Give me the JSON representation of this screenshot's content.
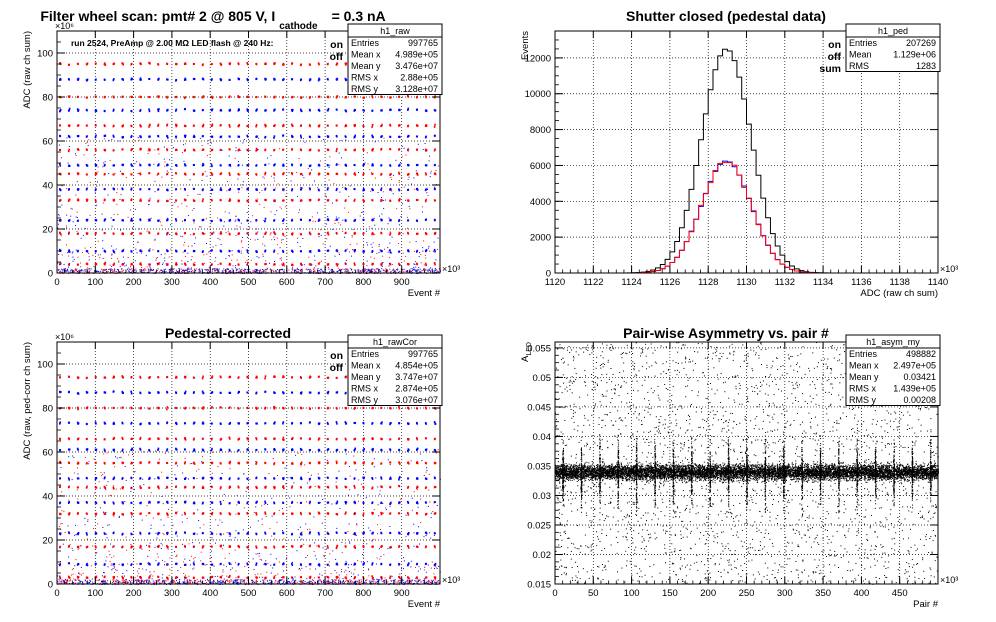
{
  "charts": [
    {
      "type": "scatter",
      "title": "Filter wheel scan: pmt#   2 @   805 V, I",
      "title_sub": "cathode",
      "title_tail": "= 0.3 nA",
      "xlabel": "Event #",
      "ylabel": "ADC (raw ch sum)",
      "x_exponent": "×10³",
      "y_exponent": "×10⁶",
      "xlim": [
        0,
        1000
      ],
      "ylim": [
        0,
        110
      ],
      "xticks": [
        0,
        100,
        200,
        300,
        400,
        500,
        600,
        700,
        800,
        900
      ],
      "yticks": [
        0,
        20,
        40,
        60,
        80,
        100
      ],
      "annotation": "run 2524, PreAmp @ 2.00 MΩ   LED flash @  240 Hz:",
      "legend": [
        {
          "label": "on",
          "color": "#0000ff"
        },
        {
          "label": "off",
          "color": "#ff0000"
        }
      ],
      "levels": [
        95,
        88,
        80,
        74,
        67,
        62,
        56,
        49,
        45,
        38,
        33,
        24,
        18,
        10,
        4
      ],
      "stats": {
        "name": "h1_raw",
        "rows": [
          [
            "Entries",
            "997765"
          ],
          [
            "Mean x",
            "4.989e+05"
          ],
          [
            "Mean y",
            "3.476e+07"
          ],
          [
            "RMS x",
            "2.88e+05"
          ],
          [
            "RMS y",
            "3.128e+07"
          ]
        ]
      }
    },
    {
      "type": "histogram",
      "title": "Shutter closed (pedestal data)",
      "xlabel": "ADC (raw ch sum)",
      "ylabel": "Events",
      "x_exponent": "×10³",
      "xlim": [
        1120,
        1140
      ],
      "ylim": [
        0,
        13500
      ],
      "xticks": [
        1120,
        1122,
        1124,
        1126,
        1128,
        1130,
        1132,
        1134,
        1136,
        1138,
        1140
      ],
      "yticks": [
        0,
        2000,
        4000,
        6000,
        8000,
        10000,
        12000
      ],
      "legend": [
        {
          "label": "on",
          "color": "#0000ff"
        },
        {
          "label": "off",
          "color": "#ff0000"
        },
        {
          "label": "sum",
          "color": "#000000"
        }
      ],
      "bin_width": 0.25,
      "series": [
        {
          "name": "sum",
          "color": "#000000",
          "peak": 12500,
          "mean": 1128.95,
          "sigma": 1.3
        },
        {
          "name": "on",
          "color": "#0000ff",
          "peak": 6250,
          "mean": 1128.95,
          "sigma": 1.3
        },
        {
          "name": "off",
          "color": "#ff0000",
          "peak": 6250,
          "mean": 1128.95,
          "sigma": 1.3
        }
      ],
      "stats": {
        "name": "h1_ped",
        "rows": [
          [
            "Entries",
            "207269"
          ],
          [
            "Mean",
            "1.129e+06"
          ],
          [
            "RMS",
            "1283"
          ]
        ]
      }
    },
    {
      "type": "scatter",
      "title": "Pedestal-corrected",
      "xlabel": "Event #",
      "ylabel": "ADC (raw, ped-corr ch sum)",
      "x_exponent": "×10³",
      "y_exponent": "×10⁶",
      "xlim": [
        0,
        1000
      ],
      "ylim": [
        0,
        110
      ],
      "xticks": [
        0,
        100,
        200,
        300,
        400,
        500,
        600,
        700,
        800,
        900
      ],
      "yticks": [
        0,
        20,
        40,
        60,
        80,
        100
      ],
      "legend": [
        {
          "label": "on",
          "color": "#0000ff"
        },
        {
          "label": "off",
          "color": "#ff0000"
        }
      ],
      "levels": [
        94,
        87,
        80,
        73,
        66,
        61,
        55,
        48,
        44,
        37,
        32,
        23,
        17,
        9,
        3
      ],
      "stats": {
        "name": "h1_rawCor",
        "rows": [
          [
            "Entries",
            "997765"
          ],
          [
            "Mean x",
            "4.854e+05"
          ],
          [
            "Mean y",
            "3.747e+07"
          ],
          [
            "RMS x",
            "2.874e+05"
          ],
          [
            "RMS y",
            "3.076e+07"
          ]
        ]
      }
    },
    {
      "type": "scatter",
      "title": "Pair-wise Asymmetry vs. pair #",
      "xlabel": "Pair #",
      "ylabel": "A",
      "ylabel_sub": "LED",
      "x_exponent": "×10³",
      "xlim": [
        0,
        500
      ],
      "ylim": [
        0.015,
        0.056
      ],
      "xticks": [
        0,
        50,
        100,
        150,
        200,
        250,
        300,
        350,
        400,
        450
      ],
      "yticks": [
        0.015,
        0.02,
        0.025,
        0.03,
        0.035,
        0.04,
        0.045,
        0.05,
        0.055
      ],
      "band_center": 0.034,
      "spike_period": 24,
      "stats": {
        "name": "h1_asym_my",
        "rows": [
          [
            "Entries",
            "498882"
          ],
          [
            "Mean x",
            "2.497e+05"
          ],
          [
            "Mean y",
            "0.03421"
          ],
          [
            "RMS x",
            "1.439e+05"
          ],
          [
            "RMS y",
            "0.00208"
          ]
        ]
      }
    }
  ]
}
